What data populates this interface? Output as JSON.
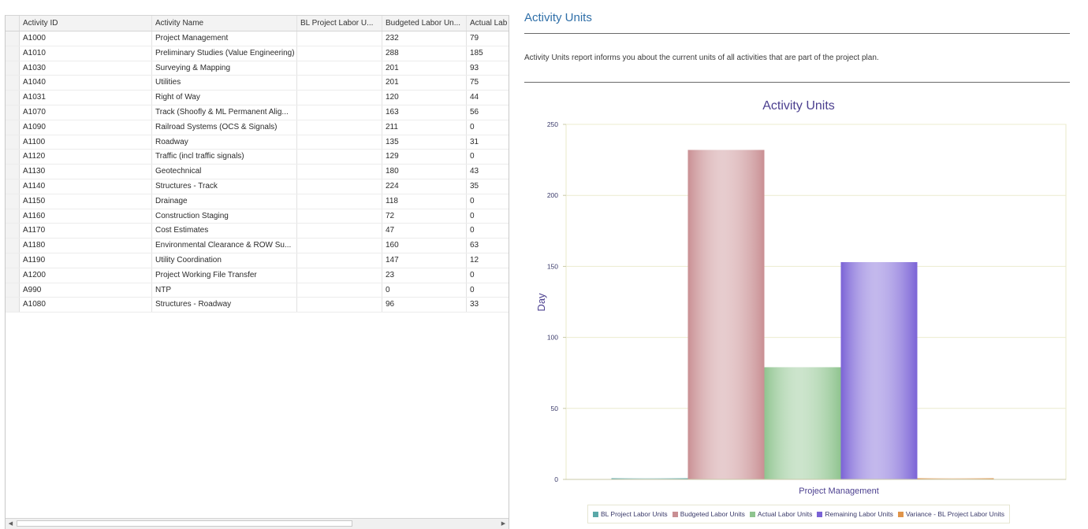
{
  "grid": {
    "columns": [
      "Activity ID",
      "Activity Name",
      "BL Project Labor U...",
      "Budgeted Labor Un...",
      "Actual Lab"
    ],
    "rows": [
      [
        "A1000",
        "Project Management",
        "",
        "232",
        "79"
      ],
      [
        "A1010",
        "Preliminary Studies (Value Engineering)",
        "",
        "288",
        "185"
      ],
      [
        "A1030",
        "Surveying & Mapping",
        "",
        "201",
        "93"
      ],
      [
        "A1040",
        "Utilities",
        "",
        "201",
        "75"
      ],
      [
        "A1031",
        "Right of Way",
        "",
        "120",
        "44"
      ],
      [
        "A1070",
        "Track (Shoofly & ML Permanent Alig...",
        "",
        "163",
        "56"
      ],
      [
        "A1090",
        "Railroad Systems (OCS & Signals)",
        "",
        "211",
        "0"
      ],
      [
        "A1100",
        "Roadway",
        "",
        "135",
        "31"
      ],
      [
        "A1120",
        "Traffic (incl traffic signals)",
        "",
        "129",
        "0"
      ],
      [
        "A1130",
        "Geotechnical",
        "",
        "180",
        "43"
      ],
      [
        "A1140",
        "Structures - Track",
        "",
        "224",
        "35"
      ],
      [
        "A1150",
        "Drainage",
        "",
        "118",
        "0"
      ],
      [
        "A1160",
        "Construction Staging",
        "",
        "72",
        "0"
      ],
      [
        "A1170",
        "Cost Estimates",
        "",
        "47",
        "0"
      ],
      [
        "A1180",
        "Environmental Clearance & ROW Su...",
        "",
        "160",
        "63"
      ],
      [
        "A1190",
        "Utility Coordination",
        "",
        "147",
        "12"
      ],
      [
        "A1200",
        "Project Working File Transfer",
        "",
        "23",
        "0"
      ],
      [
        "A990",
        "NTP",
        "",
        "0",
        "0"
      ],
      [
        "A1080",
        "Structures - Roadway",
        "",
        "96",
        "33"
      ]
    ],
    "scroll_left_arrow": "◀",
    "scroll_right_arrow": "▶"
  },
  "report": {
    "title": "Activity Units",
    "description": "Activity Units report informs you about the current units of all activities that are part of the project plan."
  },
  "chart_data": {
    "type": "bar",
    "title": "Activity Units",
    "xlabel": "Project Management",
    "ylabel": "Day",
    "categories": [
      "Project Management"
    ],
    "ylim": [
      0,
      250
    ],
    "yticks": [
      0,
      50,
      100,
      150,
      200,
      250
    ],
    "grid": true,
    "legend_position": "bottom",
    "series": [
      {
        "name": "BL Project Labor Units",
        "values": [
          0
        ],
        "color": "#5aa8a8"
      },
      {
        "name": "Budgeted Labor Units",
        "values": [
          232
        ],
        "color": "#c98f93"
      },
      {
        "name": "Actual Labor Units",
        "values": [
          79
        ],
        "color": "#8fc48f"
      },
      {
        "name": "Remaining Labor Units",
        "values": [
          153
        ],
        "color": "#7a62d6"
      },
      {
        "name": "Variance - BL Project Labor Units",
        "values": [
          0
        ],
        "color": "#e0944a"
      }
    ]
  }
}
